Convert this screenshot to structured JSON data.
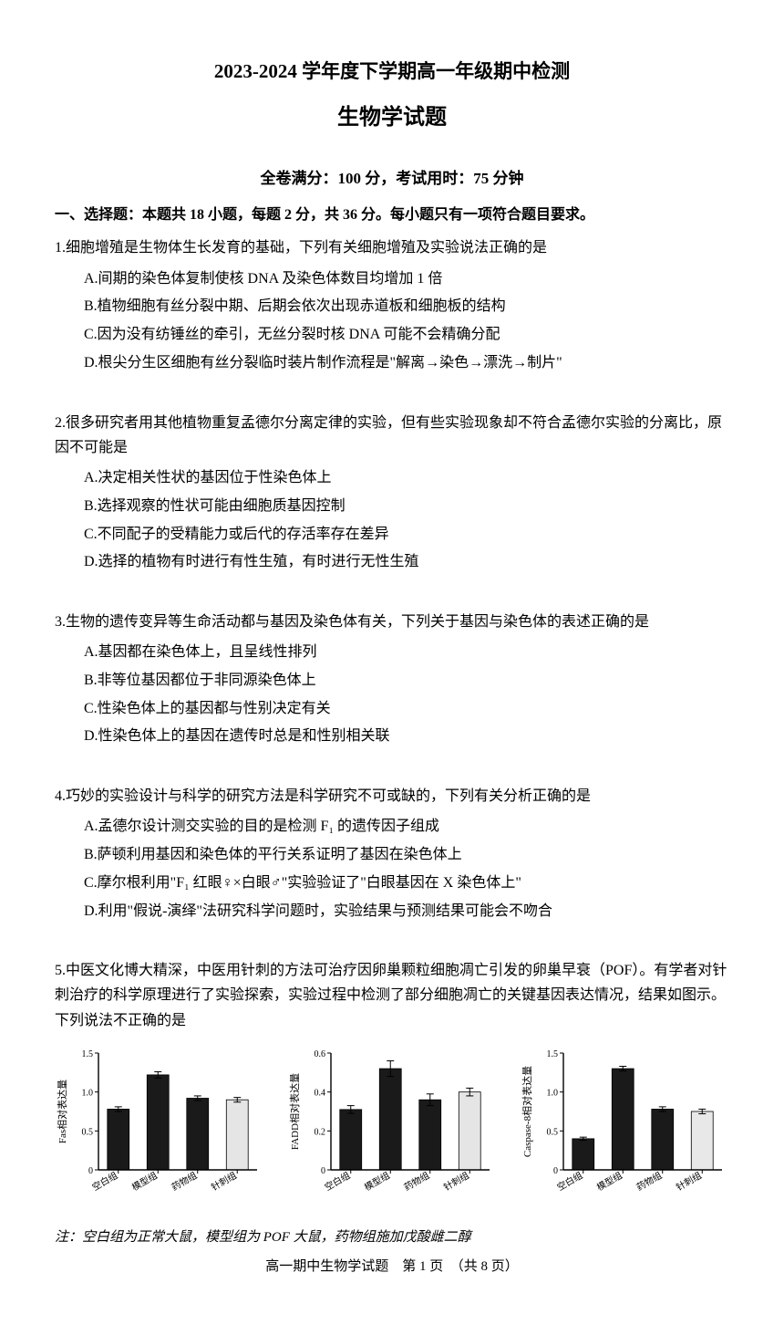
{
  "header": {
    "main_title": "2023-2024 学年度下学期高一年级期中检测",
    "subject_title": "生物学试题",
    "exam_info": "全卷满分：100 分，考试用时：75 分钟"
  },
  "section1": {
    "header": "一、选择题：本题共 18 小题，每题 2 分，共 36 分。每小题只有一项符合题目要求。"
  },
  "q1": {
    "stem": "1.细胞增殖是生物体生长发育的基础，下列有关细胞增殖及实验说法正确的是",
    "A": "A.间期的染色体复制使核 DNA 及染色体数目均增加 1 倍",
    "B": "B.植物细胞有丝分裂中期、后期会依次出现赤道板和细胞板的结构",
    "C": "C.因为没有纺锤丝的牵引，无丝分裂时核 DNA 可能不会精确分配",
    "D": "D.根尖分生区细胞有丝分裂临时装片制作流程是\"解离→染色→漂洗→制片\""
  },
  "q2": {
    "stem": "2.很多研究者用其他植物重复孟德尔分离定律的实验，但有些实验现象却不符合孟德尔实验的分离比，原因不可能是",
    "A": "A.决定相关性状的基因位于性染色体上",
    "B": "B.选择观察的性状可能由细胞质基因控制",
    "C": "C.不同配子的受精能力或后代的存活率存在差异",
    "D": "D.选择的植物有时进行有性生殖，有时进行无性生殖"
  },
  "q3": {
    "stem": "3.生物的遗传变异等生命活动都与基因及染色体有关，下列关于基因与染色体的表述正确的是",
    "A": "A.基因都在染色体上，且呈线性排列",
    "B": "B.非等位基因都位于非同源染色体上",
    "C": "C.性染色体上的基因都与性别决定有关",
    "D": "D.性染色体上的基因在遗传时总是和性别相关联"
  },
  "q4": {
    "stem": "4.巧妙的实验设计与科学的研究方法是科学研究不可或缺的，下列有关分析正确的是",
    "A": "A.孟德尔设计测交实验的目的是检测 F₁ 的遗传因子组成",
    "B": "B.萨顿利用基因和染色体的平行关系证明了基因在染色体上",
    "C": "C.摩尔根利用\"F₁ 红眼♀×白眼♂\"实验验证了\"白眼基因在 X 染色体上\"",
    "D": "D.利用\"假说-演绎\"法研究科学问题时，实验结果与预测结果可能会不吻合"
  },
  "q5": {
    "stem1": "5.中医文化博大精深，中医用针刺的方法可治疗因卵巢颗粒细胞凋亡引发的卵巢早衰（POF）。有学者对针刺治疗的科学原理进行了实验探索，实验过程中检测了部分细胞凋亡的关键基因表达情况，结果如图示。下列说法不正确的是",
    "note": "注：空白组为正常大鼠，模型组为 POF 大鼠，药物组施加戊酸雌二醇"
  },
  "charts": {
    "categories": [
      "空白组",
      "模型组",
      "药物组",
      "针刺组"
    ],
    "chart1": {
      "ylabel": "Fas相对表达量",
      "ymax": 1.5,
      "ytick_step": 0.5,
      "values": [
        0.78,
        1.22,
        0.92,
        0.9
      ],
      "errors": [
        0.03,
        0.04,
        0.03,
        0.03
      ],
      "bar_colors": [
        "#1a1a1a",
        "#1a1a1a",
        "#1a1a1a",
        "#e5e5e5"
      ]
    },
    "chart2": {
      "ylabel": "FADD相对表达量",
      "ymax": 0.6,
      "ytick_step": 0.2,
      "values": [
        0.31,
        0.52,
        0.36,
        0.4
      ],
      "errors": [
        0.02,
        0.04,
        0.03,
        0.02
      ],
      "bar_colors": [
        "#1a1a1a",
        "#1a1a1a",
        "#1a1a1a",
        "#e5e5e5"
      ]
    },
    "chart3": {
      "ylabel": "Caspase-8相对表达量",
      "ymax": 1.5,
      "ytick_step": 0.5,
      "values": [
        0.4,
        1.3,
        0.78,
        0.75
      ],
      "errors": [
        0.02,
        0.03,
        0.03,
        0.03
      ],
      "bar_colors": [
        "#1a1a1a",
        "#1a1a1a",
        "#1a1a1a",
        "#e8e8e8"
      ]
    },
    "axis_color": "#000000",
    "label_fontsize": 11,
    "tick_fontsize": 10
  },
  "footer": {
    "text": "高一期中生物学试题　第 1 页　（共 8 页）"
  }
}
